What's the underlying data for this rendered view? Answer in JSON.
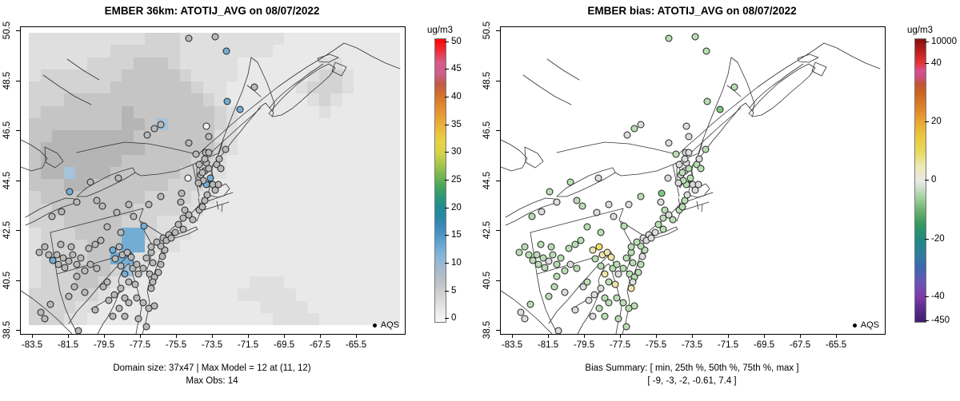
{
  "chart_data": {
    "type": "map-scatter",
    "description": "Two side-by-side model evaluation maps of the northeastern US: left shows gridded model concentrations with AQS site observations overlaid as circles; right shows model bias at the same AQS sites on a white background.",
    "panels": [
      {
        "title": "EMBER 36km: ATOTIJ_AVG on 08/07/2022",
        "legend": "AQS",
        "raster": true,
        "captions": [
          "Domain size: 37x47 | Max Model = 12 at (11, 12)",
          "Max Obs: 14"
        ],
        "colorbar": {
          "label": "ug/m3",
          "range": [
            0,
            50
          ],
          "ticks": [
            [
              "0",
              0.01
            ],
            [
              "5",
              0.108
            ],
            [
              "10",
              0.206
            ],
            [
              "15",
              0.304
            ],
            [
              "20",
              0.402
            ],
            [
              "25",
              0.5
            ],
            [
              "30",
              0.598
            ],
            [
              "35",
              0.696
            ],
            [
              "40",
              0.794
            ],
            [
              "45",
              0.892
            ],
            [
              "50",
              0.99
            ]
          ],
          "stops": [
            [
              0,
              "#f7f7f7"
            ],
            [
              0.04,
              "#e9e9e9"
            ],
            [
              0.08,
              "#d9d9d9"
            ],
            [
              0.12,
              "#c6c9cc"
            ],
            [
              0.16,
              "#b3bcc6"
            ],
            [
              0.2,
              "#9db9d3"
            ],
            [
              0.24,
              "#82b2d8"
            ],
            [
              0.28,
              "#62a4d2"
            ],
            [
              0.32,
              "#458fc2"
            ],
            [
              0.36,
              "#2f86ad"
            ],
            [
              0.4,
              "#1f8b95"
            ],
            [
              0.44,
              "#2a9877"
            ],
            [
              0.48,
              "#47a65c"
            ],
            [
              0.52,
              "#78b750"
            ],
            [
              0.56,
              "#abc64a"
            ],
            [
              0.6,
              "#d8d44a"
            ],
            [
              0.64,
              "#e8d344"
            ],
            [
              0.68,
              "#eaba3c"
            ],
            [
              0.72,
              "#e8a235"
            ],
            [
              0.76,
              "#e18a30"
            ],
            [
              0.8,
              "#d4712a"
            ],
            [
              0.84,
              "#c25a45"
            ],
            [
              0.88,
              "#cb5f8f"
            ],
            [
              0.92,
              "#d85a86"
            ],
            [
              0.96,
              "#ef2b35"
            ],
            [
              1,
              "#fb0007"
            ]
          ]
        }
      },
      {
        "title": "EMBER bias: ATOTIJ_AVG on 08/07/2022",
        "legend": "AQS",
        "raster": false,
        "captions": [
          "Bias Summary: [ min, 25th %, 50th %, 75th %, max ]",
          "[ -9,  -3,  -2,  -0.61,  7.4 ]"
        ],
        "colorbar": {
          "label": "ug/m3",
          "range": [
            -450,
            10000
          ],
          "ticks": [
            [
              "-450",
              0.003
            ],
            [
              "-40",
              0.087
            ],
            [
              "-20",
              0.29
            ],
            [
              "0",
              0.5
            ],
            [
              "20",
              0.705
            ],
            [
              "40",
              0.913
            ],
            [
              "10000",
              0.99
            ]
          ],
          "stops": [
            [
              0,
              "#421d72"
            ],
            [
              0.05,
              "#5c2d8e"
            ],
            [
              0.087,
              "#7c3aa8"
            ],
            [
              0.14,
              "#6b55b5"
            ],
            [
              0.19,
              "#3f66b0"
            ],
            [
              0.24,
              "#2f7d9d"
            ],
            [
              0.29,
              "#1e8a84"
            ],
            [
              0.345,
              "#35985f"
            ],
            [
              0.395,
              "#6eb36e"
            ],
            [
              0.447,
              "#abd6a6"
            ],
            [
              0.498,
              "#e9e9e9"
            ],
            [
              0.55,
              "#eee9b4"
            ],
            [
              0.601,
              "#e7da5e"
            ],
            [
              0.653,
              "#ecc83e"
            ],
            [
              0.705,
              "#e8a832"
            ],
            [
              0.756,
              "#dd8428"
            ],
            [
              0.808,
              "#cc641f"
            ],
            [
              0.84,
              "#c25532"
            ],
            [
              0.865,
              "#cb4f7d"
            ],
            [
              0.89,
              "#d84f8d"
            ],
            [
              0.915,
              "#e53333"
            ],
            [
              0.95,
              "#c32222"
            ],
            [
              0.98,
              "#9c1616"
            ],
            [
              1,
              "#841010"
            ]
          ]
        }
      }
    ],
    "x_axis": {
      "ticks": [
        "-83.5",
        "-81.5",
        "-79.5",
        "-77.5",
        "-75.5",
        "-73.5",
        "-71.5",
        "-69.5",
        "-67.5",
        "-65.5"
      ],
      "fracs": [
        0.03125,
        0.125,
        0.21875,
        0.3125,
        0.40625,
        0.5,
        0.59375,
        0.6875,
        0.78125,
        0.875
      ]
    },
    "y_axis": {
      "ticks": [
        "50.5",
        "48.5",
        "46.5",
        "44.5",
        "42.5",
        "40.5",
        "38.5"
      ],
      "fracs": [
        0.013,
        0.177,
        0.339,
        0.503,
        0.664,
        0.828,
        0.99
      ]
    },
    "site_classes": {
      "model_map": {
        "g": "low obs ~0-5 ug/m3 (gray)",
        "b": "obs ~10-14 ug/m3 (blue)",
        "w": "obs ~0 ug/m3 (white)"
      },
      "bias_map": {
        "n": "bias ~-2 to -5 (light green)",
        "N": "bias ~-8 (green)",
        "e": "bias ~0 (light gray)",
        "y": "bias ~+2 to +5 (pale yellow)",
        "Y": "bias ~+7 (yellow)"
      }
    },
    "dot_colors": {
      "g": "#b9b9b9",
      "b": "#74add4",
      "w": "#f2f2f2",
      "n": "#b8ddb2",
      "N": "#7ec87e",
      "e": "#dcdcdc",
      "y": "#efe6a8",
      "Y": "#f2df62"
    },
    "sites": [
      [
        43.8,
        3.6,
        "g",
        "n"
      ],
      [
        50.6,
        3.1,
        "g",
        "n"
      ],
      [
        53.5,
        7.8,
        "b",
        "n"
      ],
      [
        60.8,
        19.5,
        "g",
        "n"
      ],
      [
        53.8,
        24.2,
        "b",
        "n"
      ],
      [
        57.1,
        26.8,
        "b",
        "N"
      ],
      [
        48.3,
        32.3,
        "w",
        "e"
      ],
      [
        49.0,
        35.7,
        "g",
        "e"
      ],
      [
        48.1,
        40.9,
        "g",
        "e"
      ],
      [
        48.3,
        44.3,
        "g",
        "e"
      ],
      [
        34.8,
        33.1,
        "g",
        "n"
      ],
      [
        32.9,
        35.2,
        "g",
        "e"
      ],
      [
        36.5,
        31.8,
        "g",
        "e"
      ],
      [
        12.7,
        53.6,
        "b",
        "n"
      ],
      [
        18.1,
        50.5,
        "g",
        "n"
      ],
      [
        25.4,
        49.2,
        "g",
        "e"
      ],
      [
        19.8,
        56.5,
        "g",
        "n"
      ],
      [
        8.1,
        61.7,
        "g",
        "n"
      ],
      [
        10.6,
        60.2,
        "g",
        "e"
      ],
      [
        14.6,
        57.0,
        "g",
        "e"
      ],
      [
        21.3,
        58.3,
        "g",
        "n"
      ],
      [
        22.5,
        65.1,
        "g",
        "n"
      ],
      [
        25.0,
        60.4,
        "g",
        "e"
      ],
      [
        28.1,
        57.8,
        "g",
        "e"
      ],
      [
        29.4,
        61.7,
        "g",
        "e"
      ],
      [
        32.1,
        64.8,
        "b",
        "n"
      ],
      [
        26.0,
        66.9,
        "g",
        "n"
      ],
      [
        33.3,
        57.8,
        "g",
        "e"
      ],
      [
        36.5,
        55.2,
        "g",
        "n"
      ],
      [
        41.7,
        57.0,
        "g",
        "e"
      ],
      [
        41.9,
        54.2,
        "g",
        "N"
      ],
      [
        42.7,
        59.6,
        "g",
        "n"
      ],
      [
        4.8,
        73.4,
        "g",
        "n"
      ],
      [
        6.3,
        71.6,
        "g",
        "n"
      ],
      [
        7.3,
        74.2,
        "g",
        "n"
      ],
      [
        8.3,
        76.0,
        "b",
        "n"
      ],
      [
        9.4,
        74.2,
        "g",
        "n"
      ],
      [
        9.8,
        77.3,
        "g",
        "n"
      ],
      [
        11.0,
        75.3,
        "g",
        "n"
      ],
      [
        11.5,
        78.4,
        "g",
        "n"
      ],
      [
        12.5,
        76.3,
        "g",
        "e"
      ],
      [
        13.5,
        74.2,
        "g",
        "n"
      ],
      [
        14.6,
        77.3,
        "g",
        "n"
      ],
      [
        15.6,
        75.3,
        "g",
        "n"
      ],
      [
        13.1,
        71.6,
        "g",
        "n"
      ],
      [
        10.4,
        70.8,
        "g",
        "n"
      ],
      [
        14.6,
        81.3,
        "g",
        "n"
      ],
      [
        16.7,
        79.4,
        "g",
        "n"
      ],
      [
        18.1,
        77.3,
        "g",
        "e"
      ],
      [
        19.8,
        78.6,
        "g",
        "n"
      ],
      [
        24.0,
        72.7,
        "b",
        "y"
      ],
      [
        25.6,
        71.6,
        "g",
        "Y"
      ],
      [
        26.5,
        74.2,
        "g",
        "y"
      ],
      [
        27.7,
        73.4,
        "g",
        "y"
      ],
      [
        28.8,
        75.0,
        "g",
        "y"
      ],
      [
        24.6,
        75.5,
        "g",
        "n"
      ],
      [
        17.7,
        72.1,
        "g",
        "n"
      ],
      [
        19.4,
        70.8,
        "g",
        "n"
      ],
      [
        20.8,
        69.5,
        "g",
        "n"
      ],
      [
        22.5,
        83.1,
        "g",
        "n"
      ],
      [
        26.0,
        77.9,
        "g",
        "n"
      ],
      [
        27.1,
        80.5,
        "b",
        "y"
      ],
      [
        29.2,
        78.6,
        "g",
        "n"
      ],
      [
        30.2,
        77.3,
        "g",
        "n"
      ],
      [
        30.6,
        80.5,
        "g",
        "e"
      ],
      [
        31.9,
        78.6,
        "g",
        "n"
      ],
      [
        28.1,
        83.1,
        "g",
        "n"
      ],
      [
        29.8,
        83.9,
        "g",
        "y"
      ],
      [
        34.0,
        85.2,
        "g",
        "y"
      ],
      [
        26.0,
        85.2,
        "g",
        "e"
      ],
      [
        24.4,
        87.2,
        "g",
        "e"
      ],
      [
        22.9,
        89.1,
        "g",
        "e"
      ],
      [
        27.1,
        88.3,
        "g",
        "n"
      ],
      [
        28.1,
        89.8,
        "g",
        "n"
      ],
      [
        30.2,
        88.3,
        "g",
        "n"
      ],
      [
        31.9,
        89.8,
        "g",
        "n"
      ],
      [
        33.3,
        91.7,
        "g",
        "n"
      ],
      [
        25.6,
        91.7,
        "g",
        "n"
      ],
      [
        24.0,
        94.3,
        "g",
        "e"
      ],
      [
        27.1,
        94.3,
        "g",
        "n"
      ],
      [
        30.6,
        95.1,
        "g",
        "n"
      ],
      [
        32.7,
        97.7,
        "g",
        "n"
      ],
      [
        34.8,
        90.9,
        "g",
        "n"
      ],
      [
        5.2,
        93.0,
        "g",
        "e"
      ],
      [
        6.3,
        95.1,
        "g",
        "e"
      ],
      [
        7.7,
        90.4,
        "g",
        "n"
      ],
      [
        19.4,
        92.2,
        "g",
        "e"
      ],
      [
        15.0,
        99.0,
        "g",
        "e"
      ],
      [
        12.5,
        87.8,
        "g",
        "n"
      ],
      [
        14.0,
        84.6,
        "g",
        "n"
      ],
      [
        16.7,
        86.5,
        "g",
        "e"
      ],
      [
        21.5,
        84.6,
        "g",
        "e"
      ],
      [
        32.7,
        75.3,
        "g",
        "n"
      ],
      [
        34.0,
        73.4,
        "g",
        "n"
      ],
      [
        34.4,
        76.8,
        "g",
        "n"
      ],
      [
        33.5,
        80.5,
        "g",
        "n"
      ],
      [
        34.8,
        81.5,
        "g",
        "n"
      ],
      [
        34.4,
        83.1,
        "g",
        "e"
      ],
      [
        35.8,
        79.9,
        "g",
        "n"
      ],
      [
        36.5,
        77.3,
        "g",
        "n"
      ],
      [
        36.9,
        74.7,
        "g",
        "e"
      ],
      [
        37.5,
        72.7,
        "g",
        "n"
      ],
      [
        37.1,
        68.8,
        "g",
        "e"
      ],
      [
        37.9,
        69.5,
        "g",
        "e"
      ],
      [
        38.5,
        67.7,
        "g",
        "e"
      ],
      [
        39.2,
        68.8,
        "g",
        "e"
      ],
      [
        40.2,
        66.9,
        "g",
        "e"
      ],
      [
        42.3,
        65.9,
        "g",
        "n"
      ],
      [
        36.5,
        71.4,
        "g",
        "n"
      ],
      [
        35.4,
        70.1,
        "g",
        "n"
      ],
      [
        34.0,
        71.6,
        "g",
        "n"
      ],
      [
        42.3,
        62.2,
        "g",
        "n"
      ],
      [
        43.8,
        61.2,
        "g",
        "e"
      ],
      [
        44.8,
        62.8,
        "g",
        "n"
      ],
      [
        41.0,
        64.3,
        "g",
        "n"
      ],
      [
        46.5,
        59.6,
        "g",
        "n"
      ],
      [
        47.3,
        58.6,
        "g",
        "n"
      ],
      [
        47.9,
        56.5,
        "g",
        "n"
      ],
      [
        48.5,
        54.7,
        "g",
        "e"
      ],
      [
        49.4,
        49.2,
        "b",
        "n"
      ],
      [
        48.3,
        51.3,
        "b",
        "n"
      ],
      [
        47.5,
        50.0,
        "g",
        "n"
      ],
      [
        46.9,
        48.2,
        "g",
        "e"
      ],
      [
        47.9,
        46.9,
        "g",
        "e"
      ],
      [
        49.0,
        46.1,
        "g",
        "n"
      ],
      [
        46.3,
        50.8,
        "g",
        "e"
      ],
      [
        50.0,
        51.3,
        "g",
        "e"
      ],
      [
        50.6,
        53.1,
        "g",
        "e"
      ],
      [
        51.5,
        51.3,
        "g",
        "e"
      ],
      [
        43.5,
        49.2,
        "w",
        "e"
      ],
      [
        45.6,
        41.4,
        "g",
        "n"
      ],
      [
        46.5,
        44.8,
        "g",
        "e"
      ],
      [
        47.3,
        47.4,
        "g",
        "n"
      ],
      [
        47.9,
        43.0,
        "g",
        "e"
      ],
      [
        49.0,
        40.9,
        "g",
        "e"
      ],
      [
        51.0,
        44.8,
        "g",
        "n"
      ],
      [
        51.7,
        43.0,
        "g",
        "e"
      ],
      [
        52.1,
        46.1,
        "g",
        "n"
      ],
      [
        53.3,
        39.8,
        "g",
        "n"
      ],
      [
        43.8,
        37.8,
        "g",
        "e"
      ]
    ],
    "raster": {
      "colors": {
        "0": "#f2f2f2",
        "1": "#e9e9e9",
        "2": "#dfdfdf",
        "3": "#d3d3d3",
        "4": "#c5c5c5",
        "5": "#b5b5b5",
        "b": "#74add4",
        "c": "#a5c3da"
      },
      "rows": [
        "22222222223332222222221111111111",
        "22222223333332222222211111111111",
        "22222333344432222211111112211111",
        "23333333444443222211111123321111",
        "33333334444444322111111233321111",
        "33344444444444432111111123211111",
        "34444444544444443211111112111111",
        "44444444554c44443211111111111111",
        "44555555544444442211111111111111",
        "45555555554444443211111111111111",
        "45555555444444332111111111111111",
        "455c5554444443322111111111111111",
        "44455444444433321111111111111111",
        "34444444443333221111111111111111",
        "33444444433332211111111111111111",
        "33344444333222111111111111111111",
        "23334444bb3222111111111111111111",
        "23333444bb2221111111111111111111",
        "2333344bb22111111111111111111111",
        "23334443c21111111111111111111111",
        "23334432211111111112221111111111",
        "33333321111111111122222111111111",
        "33332211111111111111222211111111",
        "33322111111111111111122221111111"
      ]
    }
  }
}
